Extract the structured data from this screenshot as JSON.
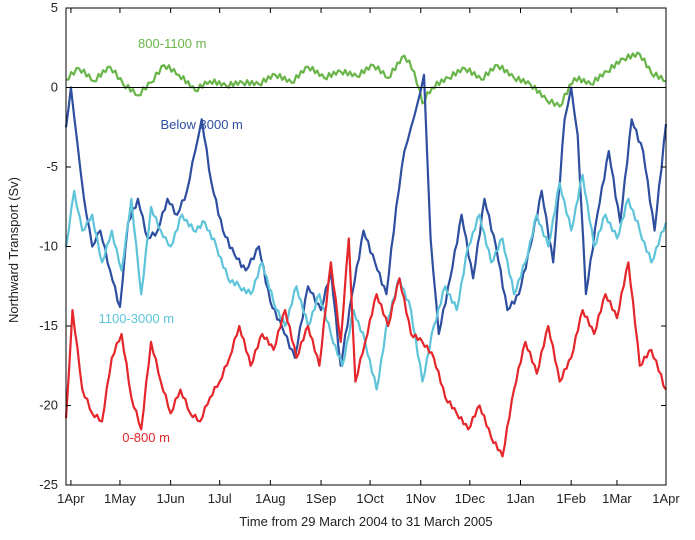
{
  "chart_data": {
    "type": "line",
    "xlabel": "Time from 29 March 2004 to 31 March 2005",
    "ylabel": "Northward Transport (Sv)",
    "xlim": [
      "2004-03-29",
      "2005-03-31"
    ],
    "ylim": [
      -25,
      5
    ],
    "yticks": [
      5,
      0,
      -5,
      -10,
      -15,
      -20,
      -25
    ],
    "zero_line": true,
    "grid": false,
    "xticks": [
      {
        "label": "1Apr",
        "date": "2004-04-01"
      },
      {
        "label": "1May",
        "date": "2004-05-01"
      },
      {
        "label": "1Jun",
        "date": "2004-06-01"
      },
      {
        "label": "1Jul",
        "date": "2004-07-01"
      },
      {
        "label": "1Aug",
        "date": "2004-08-01"
      },
      {
        "label": "1Sep",
        "date": "2004-09-01"
      },
      {
        "label": "1Oct",
        "date": "2004-10-01"
      },
      {
        "label": "1Nov",
        "date": "2004-11-01"
      },
      {
        "label": "1Dec",
        "date": "2004-12-01"
      },
      {
        "label": "1Jan",
        "date": "2005-01-01"
      },
      {
        "label": "1Feb",
        "date": "2005-02-01"
      },
      {
        "label": "1Mar",
        "date": "2005-03-01"
      },
      {
        "label": "1Apr",
        "date": "2005-04-01"
      }
    ],
    "series": [
      {
        "name": "800-1100 m",
        "color": "#6ab54a",
        "x": [
          "2004-03-29",
          "2004-04-06",
          "2004-04-15",
          "2004-04-25",
          "2004-05-03",
          "2004-05-12",
          "2004-05-20",
          "2004-05-28",
          "2004-06-06",
          "2004-06-16",
          "2004-06-25",
          "2004-07-05",
          "2004-07-15",
          "2004-07-25",
          "2004-08-04",
          "2004-08-14",
          "2004-08-24",
          "2004-09-03",
          "2004-09-13",
          "2004-09-23",
          "2004-10-03",
          "2004-10-12",
          "2004-10-22",
          "2004-10-28",
          "2004-11-02",
          "2004-11-08",
          "2004-11-18",
          "2004-11-28",
          "2004-12-08",
          "2004-12-18",
          "2004-12-28",
          "2005-01-07",
          "2005-01-17",
          "2005-01-25",
          "2005-02-03",
          "2005-02-13",
          "2005-02-23",
          "2005-03-05",
          "2005-03-15",
          "2005-03-22",
          "2005-03-31"
        ],
        "y": [
          0.5,
          1.2,
          0.4,
          1.3,
          0.2,
          -0.5,
          0.3,
          1.4,
          0.8,
          -0.2,
          0.4,
          0.1,
          0.3,
          0.2,
          0.8,
          0.3,
          1.3,
          0.6,
          1.0,
          0.7,
          1.4,
          0.6,
          2.0,
          1.0,
          -1.0,
          0.0,
          0.6,
          1.2,
          0.5,
          1.4,
          0.6,
          0.2,
          -0.8,
          -1.2,
          0.6,
          0.2,
          1.0,
          1.8,
          2.1,
          0.9,
          0.4
        ]
      },
      {
        "name": "Below 3000 m",
        "color": "#2e4fa0",
        "x": [
          "2004-03-29",
          "2004-04-01",
          "2004-04-05",
          "2004-04-09",
          "2004-04-14",
          "2004-04-19",
          "2004-04-25",
          "2004-05-01",
          "2004-05-06",
          "2004-05-12",
          "2004-05-18",
          "2004-05-24",
          "2004-05-30",
          "2004-06-05",
          "2004-06-11",
          "2004-06-16",
          "2004-06-20",
          "2004-06-26",
          "2004-07-03",
          "2004-07-10",
          "2004-07-17",
          "2004-07-25",
          "2004-08-01",
          "2004-08-08",
          "2004-08-16",
          "2004-08-24",
          "2004-09-01",
          "2004-09-07",
          "2004-09-13",
          "2004-09-20",
          "2004-09-27",
          "2004-10-04",
          "2004-10-11",
          "2004-10-17",
          "2004-10-22",
          "2004-10-26",
          "2004-10-30",
          "2004-11-03",
          "2004-11-07",
          "2004-11-12",
          "2004-11-19",
          "2004-11-26",
          "2004-12-03",
          "2004-12-10",
          "2004-12-17",
          "2004-12-24",
          "2004-12-31",
          "2005-01-07",
          "2005-01-14",
          "2005-01-21",
          "2005-01-28",
          "2005-02-01",
          "2005-02-05",
          "2005-02-10",
          "2005-02-17",
          "2005-02-24",
          "2005-03-03",
          "2005-03-10",
          "2005-03-17",
          "2005-03-24",
          "2005-03-31"
        ],
        "y": [
          -2.5,
          0.0,
          -3.5,
          -7.0,
          -10.0,
          -9.0,
          -11.5,
          -13.8,
          -8.5,
          -7.0,
          -9.5,
          -9.0,
          -7.0,
          -8.0,
          -6.5,
          -4.0,
          -2.0,
          -6.0,
          -9.0,
          -10.5,
          -11.5,
          -10.0,
          -13.5,
          -15.0,
          -17.0,
          -12.5,
          -14.0,
          -11.5,
          -17.5,
          -13.0,
          -9.0,
          -11.0,
          -13.0,
          -7.5,
          -4.0,
          -2.5,
          -1.0,
          0.8,
          -9.5,
          -15.5,
          -12.0,
          -8.0,
          -12.0,
          -7.0,
          -10.0,
          -14.0,
          -13.0,
          -10.0,
          -6.5,
          -11.0,
          -2.0,
          0.0,
          -3.0,
          -13.0,
          -8.0,
          -4.0,
          -8.5,
          -2.0,
          -4.0,
          -9.0,
          -2.3
        ]
      },
      {
        "name": "1100-3000 m",
        "color": "#5ec4d9",
        "x": [
          "2004-03-29",
          "2004-04-03",
          "2004-04-08",
          "2004-04-14",
          "2004-04-20",
          "2004-04-26",
          "2004-05-02",
          "2004-05-08",
          "2004-05-14",
          "2004-05-20",
          "2004-05-26",
          "2004-06-01",
          "2004-06-08",
          "2004-06-15",
          "2004-06-22",
          "2004-06-29",
          "2004-07-06",
          "2004-07-13",
          "2004-07-20",
          "2004-07-27",
          "2004-08-03",
          "2004-08-10",
          "2004-08-17",
          "2004-08-24",
          "2004-08-31",
          "2004-09-07",
          "2004-09-14",
          "2004-09-21",
          "2004-09-28",
          "2004-10-05",
          "2004-10-12",
          "2004-10-19",
          "2004-10-26",
          "2004-11-02",
          "2004-11-09",
          "2004-11-16",
          "2004-11-23",
          "2004-11-30",
          "2004-12-07",
          "2004-12-14",
          "2004-12-21",
          "2004-12-28",
          "2005-01-04",
          "2005-01-11",
          "2005-01-18",
          "2005-01-25",
          "2005-02-01",
          "2005-02-08",
          "2005-02-15",
          "2005-02-22",
          "2005-03-01",
          "2005-03-08",
          "2005-03-15",
          "2005-03-22",
          "2005-03-31"
        ],
        "y": [
          -10.0,
          -6.5,
          -9.0,
          -8.0,
          -11.0,
          -9.0,
          -11.5,
          -7.0,
          -13.0,
          -7.5,
          -9.0,
          -10.0,
          -8.0,
          -9.0,
          -8.5,
          -10.0,
          -12.0,
          -12.5,
          -13.0,
          -11.0,
          -13.5,
          -15.0,
          -12.5,
          -15.0,
          -13.0,
          -15.5,
          -17.5,
          -14.0,
          -16.0,
          -19.0,
          -14.5,
          -12.0,
          -14.0,
          -18.5,
          -15.0,
          -12.5,
          -14.0,
          -10.0,
          -8.0,
          -11.0,
          -9.5,
          -13.0,
          -11.0,
          -8.0,
          -10.0,
          -6.0,
          -9.0,
          -5.5,
          -10.0,
          -8.0,
          -9.5,
          -7.0,
          -9.0,
          -11.0,
          -8.5
        ]
      },
      {
        "name": "0-800 m",
        "color": "#e5262b",
        "x": [
          "2004-03-29",
          "2004-04-02",
          "2004-04-08",
          "2004-04-14",
          "2004-04-20",
          "2004-04-26",
          "2004-05-02",
          "2004-05-08",
          "2004-05-14",
          "2004-05-20",
          "2004-05-26",
          "2004-06-01",
          "2004-06-07",
          "2004-06-13",
          "2004-06-19",
          "2004-06-25",
          "2004-07-01",
          "2004-07-07",
          "2004-07-13",
          "2004-07-20",
          "2004-07-27",
          "2004-08-03",
          "2004-08-10",
          "2004-08-17",
          "2004-08-24",
          "2004-08-31",
          "2004-09-07",
          "2004-09-13",
          "2004-09-18",
          "2004-09-22",
          "2004-09-28",
          "2004-10-05",
          "2004-10-12",
          "2004-10-19",
          "2004-10-26",
          "2004-11-02",
          "2004-11-09",
          "2004-11-16",
          "2004-11-23",
          "2004-11-30",
          "2004-12-07",
          "2004-12-14",
          "2004-12-21",
          "2004-12-28",
          "2005-01-04",
          "2005-01-11",
          "2005-01-18",
          "2005-01-25",
          "2005-02-01",
          "2005-02-08",
          "2005-02-15",
          "2005-02-22",
          "2005-03-01",
          "2005-03-08",
          "2005-03-15",
          "2005-03-22",
          "2005-03-31"
        ],
        "y": [
          -20.8,
          -14.0,
          -19.0,
          -20.5,
          -21.0,
          -17.0,
          -15.5,
          -19.5,
          -21.5,
          -16.0,
          -18.5,
          -20.5,
          -19.0,
          -20.5,
          -21.0,
          -19.5,
          -18.5,
          -17.0,
          -15.0,
          -17.5,
          -15.5,
          -16.5,
          -14.0,
          -17.0,
          -15.0,
          -17.5,
          -11.0,
          -16.0,
          -9.5,
          -18.5,
          -16.0,
          -13.0,
          -15.0,
          -12.0,
          -15.5,
          -16.0,
          -17.0,
          -19.5,
          -20.5,
          -21.5,
          -20.0,
          -22.0,
          -23.2,
          -19.0,
          -16.0,
          -18.0,
          -15.0,
          -18.5,
          -17.0,
          -14.0,
          -15.5,
          -13.0,
          -14.5,
          -11.0,
          -17.5,
          -16.5,
          -19.0
        ]
      }
    ],
    "annotations": [
      {
        "text": "800-1100 m",
        "color": "#6ab54a",
        "x": "2004-06-02",
        "y": 2.5
      },
      {
        "text": "Below 3000 m",
        "color": "#2e4fa0",
        "x": "2004-06-20",
        "y": -2.6
      },
      {
        "text": "1100-3000 m",
        "color": "#5ec4d9",
        "x": "2004-05-11",
        "y": -14.8
      },
      {
        "text": "0-800 m",
        "color": "#e5262b",
        "x": "2004-05-17",
        "y": -22.3
      }
    ]
  }
}
